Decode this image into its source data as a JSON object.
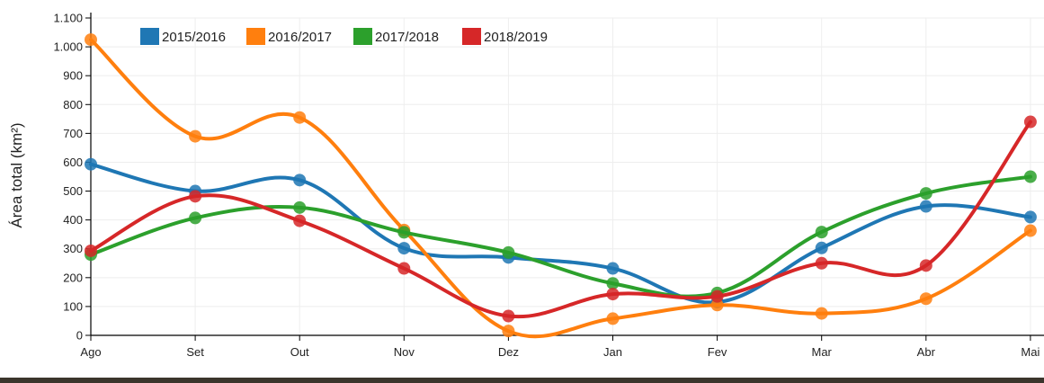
{
  "chart_data": {
    "type": "line",
    "title": "",
    "xlabel": "",
    "ylabel": "Área total (km²)",
    "categories": [
      "Ago",
      "Set",
      "Out",
      "Nov",
      "Dez",
      "Jan",
      "Fev",
      "Mar",
      "Abr",
      "Mai"
    ],
    "ylim": [
      0,
      1100
    ],
    "yticks": [
      0,
      100,
      200,
      300,
      400,
      500,
      600,
      700,
      800,
      900,
      1000,
      1100
    ],
    "ytick_labels": [
      "0",
      "100",
      "200",
      "300",
      "400",
      "500",
      "600",
      "700",
      "800",
      "900",
      "1.000",
      "1.100"
    ],
    "grid": true,
    "legend_position": "top-left",
    "series": [
      {
        "name": "2015/2016",
        "color": "#1f77b4",
        "values": [
          593,
          500,
          538,
          302,
          270,
          232,
          115,
          303,
          447,
          410
        ]
      },
      {
        "name": "2016/2017",
        "color": "#ff7f0e",
        "values": [
          1025,
          690,
          755,
          365,
          15,
          58,
          105,
          76,
          127,
          363
        ]
      },
      {
        "name": "2017/2018",
        "color": "#2ca02c",
        "values": [
          280,
          407,
          443,
          357,
          287,
          180,
          147,
          358,
          492,
          550
        ]
      },
      {
        "name": "2018/2019",
        "color": "#d62728",
        "values": [
          293,
          482,
          397,
          232,
          67,
          143,
          135,
          250,
          242,
          740
        ]
      }
    ]
  }
}
